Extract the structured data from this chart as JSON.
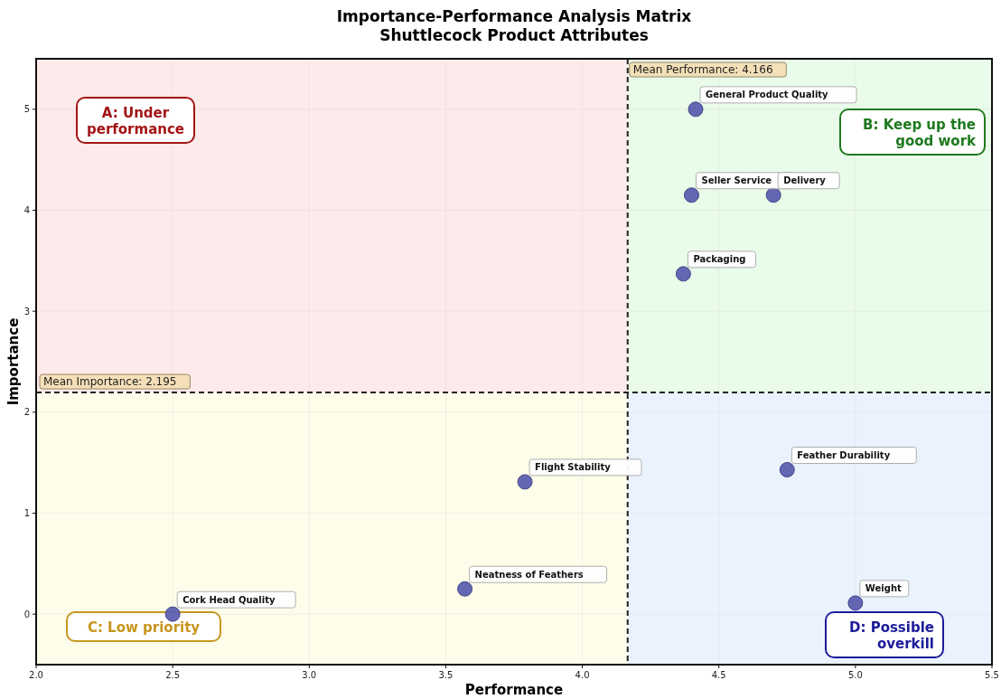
{
  "chart_data": {
    "type": "scatter",
    "title": "Importance-Performance Analysis Matrix",
    "subtitle": "Shuttlecock Product Attributes",
    "xlabel": "Performance",
    "ylabel": "Importance",
    "xlim": [
      2.0,
      5.5
    ],
    "xticks": [
      {
        "value": 2.0,
        "label": "2.0"
      },
      {
        "value": 2.5,
        "label": "2.5"
      },
      {
        "value": 3.0,
        "label": "3.0"
      },
      {
        "value": 3.5,
        "label": "3.5"
      },
      {
        "value": 4.0,
        "label": "4.0"
      },
      {
        "value": 4.5,
        "label": "4.5"
      },
      {
        "value": 5.0,
        "label": "5.0"
      },
      {
        "value": 5.5,
        "label": "5.5"
      }
    ],
    "ylim": [
      -0.5,
      5.5
    ],
    "yticks": [
      0,
      1,
      2,
      3,
      4,
      5
    ],
    "grid": true,
    "marker": "circle",
    "series": [
      {
        "name": "General Product Quality",
        "color": "#5c5fb0",
        "x": [
          4.415
        ],
        "values": [
          5.0
        ]
      },
      {
        "name": "Seller Service",
        "color": "#5c5fb0",
        "x": [
          4.4
        ],
        "values": [
          4.15
        ]
      },
      {
        "name": "Delivery",
        "color": "#5c5fb0",
        "x": [
          4.7
        ],
        "values": [
          4.15
        ]
      },
      {
        "name": "Packaging",
        "color": "#5c5fb0",
        "x": [
          4.37
        ],
        "values": [
          3.37
        ]
      },
      {
        "name": "Feather Durability",
        "color": "#5c5fb0",
        "x": [
          4.75
        ],
        "values": [
          1.43
        ]
      },
      {
        "name": "Flight Stability",
        "color": "#5c5fb0",
        "x": [
          3.79
        ],
        "values": [
          1.31
        ]
      },
      {
        "name": "Neatness of Feathers",
        "color": "#5c5fb0",
        "x": [
          3.57
        ],
        "values": [
          0.25
        ]
      },
      {
        "name": "Cork Head Quality",
        "color": "#5c5fb0",
        "x": [
          2.5
        ],
        "values": [
          0.0
        ]
      },
      {
        "name": "Weight",
        "color": "#5c5fb0",
        "x": [
          5.0
        ],
        "values": [
          0.11
        ]
      }
    ],
    "ref_lines": [
      {
        "axis": "x",
        "value": 4.166,
        "label": "Mean Performance: 4.166",
        "color": "#222222",
        "line_style": "dashed"
      },
      {
        "axis": "y",
        "value": 2.195,
        "label": "Mean Importance: 2.195",
        "color": "#222222",
        "line_style": "dashed"
      }
    ],
    "annotations": [
      "A: Under\nperformance",
      "B: Keep up the\ngood work",
      "C: Low priority",
      "D: Possible\noverkill"
    ]
  }
}
